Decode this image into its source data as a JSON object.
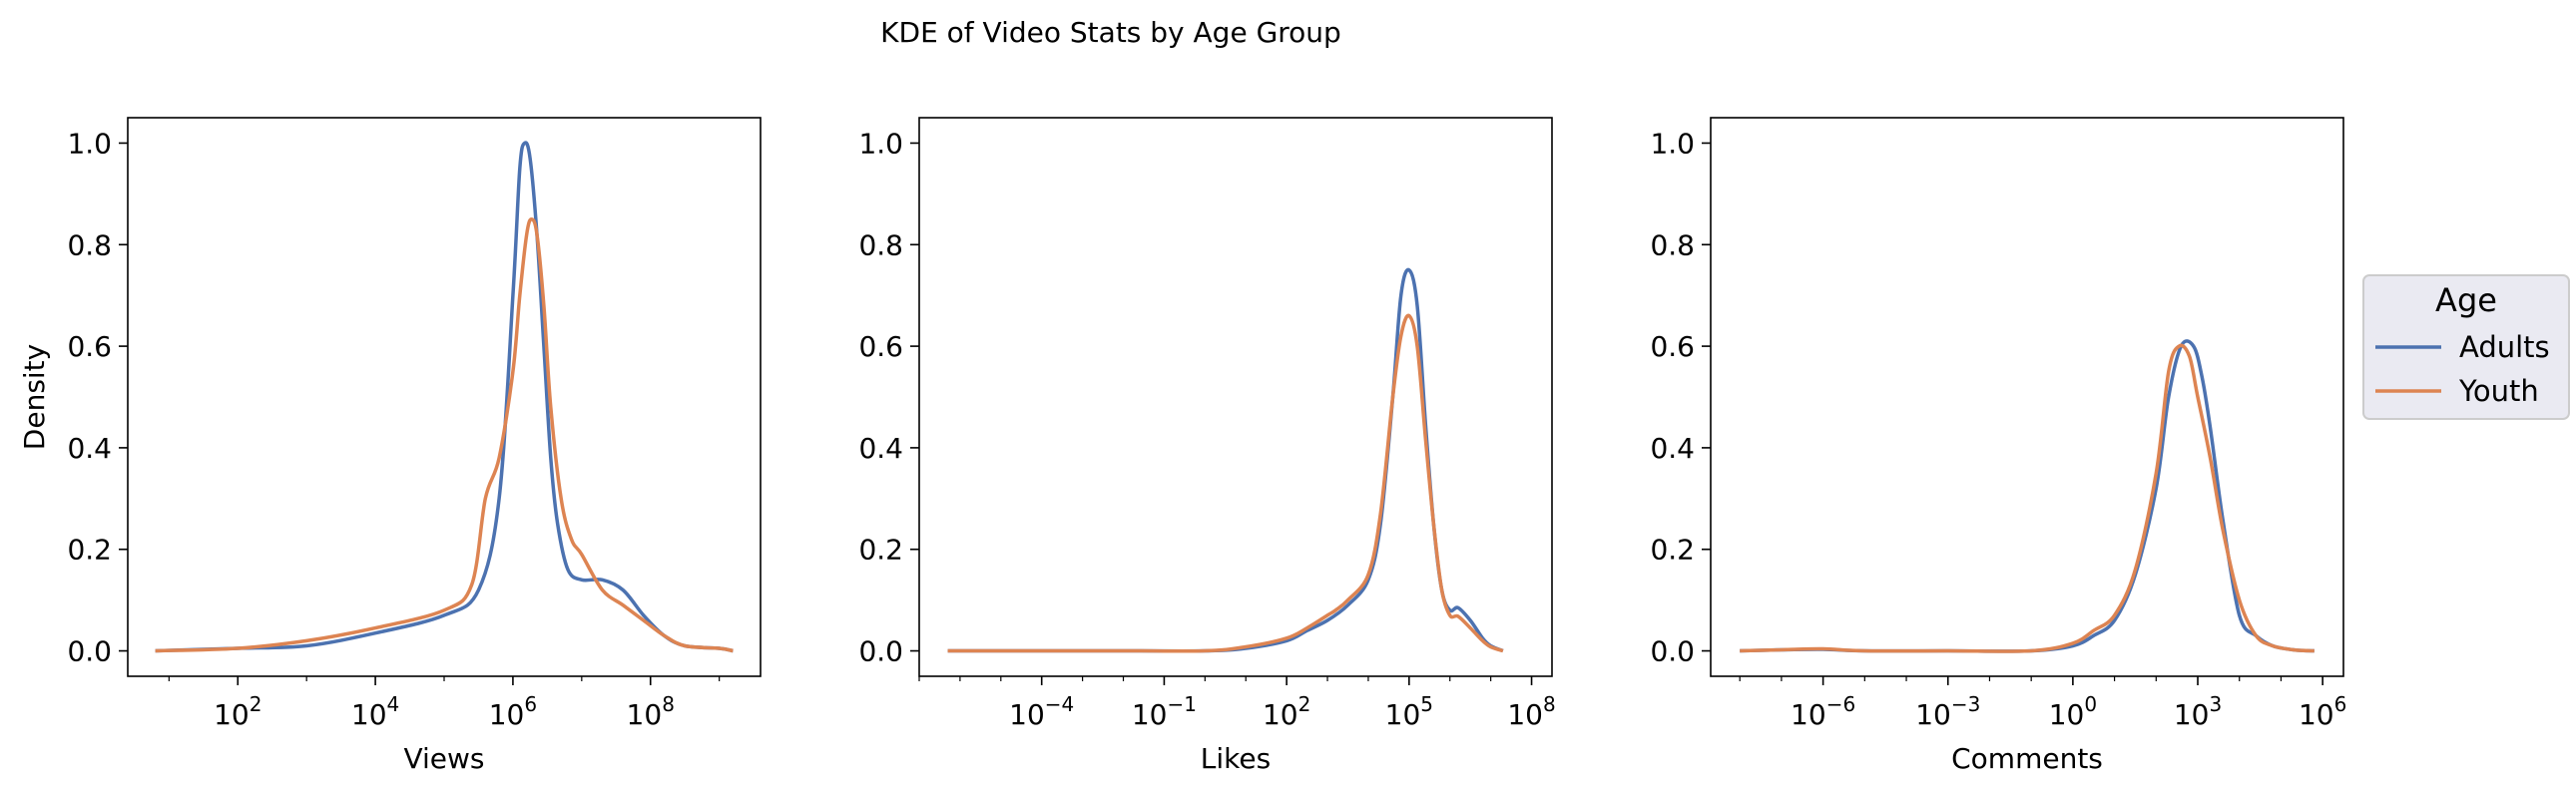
{
  "title": "KDE of Video Stats by Age Group",
  "legend": {
    "title": "Age",
    "placement": "right-outside",
    "entries": [
      {
        "name": "Adults",
        "color": "#4c72b0"
      },
      {
        "name": "Youth",
        "color": "#dd8452"
      }
    ]
  },
  "chart_data": [
    {
      "type": "line",
      "xlabel": "Views",
      "ylabel": "Density",
      "xscale": "log",
      "xlim_log10": [
        0.4,
        9.6
      ],
      "ylim": [
        -0.05,
        1.05
      ],
      "xticks": [
        {
          "exp": 2,
          "base": "10",
          "power": "2"
        },
        {
          "exp": 4,
          "base": "10",
          "power": "4"
        },
        {
          "exp": 6,
          "base": "10",
          "power": "6"
        },
        {
          "exp": 8,
          "base": "10",
          "power": "8"
        }
      ],
      "yticks": [
        {
          "value": 0.0,
          "label": "0.0"
        },
        {
          "value": 0.2,
          "label": "0.2"
        },
        {
          "value": 0.4,
          "label": "0.4"
        },
        {
          "value": 0.6,
          "label": "0.6"
        },
        {
          "value": 0.8,
          "label": "0.8"
        },
        {
          "value": 1.0,
          "label": "1.0"
        }
      ],
      "series": [
        {
          "name": "Adults",
          "color": "#4c72b0",
          "log10_x": [
            0.8,
            2.0,
            3.0,
            4.0,
            5.0,
            5.5,
            5.8,
            6.0,
            6.1,
            6.17,
            6.25,
            6.35,
            6.45,
            6.55,
            6.65,
            6.8,
            7.0,
            7.3,
            7.6,
            7.9,
            8.2,
            8.5,
            9.0,
            9.2
          ],
          "y": [
            0.0,
            0.005,
            0.01,
            0.035,
            0.07,
            0.12,
            0.3,
            0.7,
            0.95,
            1.0,
            0.97,
            0.82,
            0.6,
            0.38,
            0.25,
            0.16,
            0.14,
            0.14,
            0.12,
            0.07,
            0.03,
            0.01,
            0.005,
            0.0
          ]
        },
        {
          "name": "Youth",
          "color": "#dd8452",
          "log10_x": [
            0.8,
            2.0,
            3.0,
            4.0,
            5.0,
            5.4,
            5.6,
            5.8,
            6.0,
            6.1,
            6.2,
            6.27,
            6.35,
            6.45,
            6.55,
            6.7,
            6.85,
            7.0,
            7.3,
            7.6,
            7.9,
            8.2,
            8.5,
            9.0,
            9.2
          ],
          "y": [
            0.0,
            0.005,
            0.02,
            0.045,
            0.08,
            0.13,
            0.3,
            0.38,
            0.55,
            0.7,
            0.82,
            0.85,
            0.82,
            0.68,
            0.48,
            0.3,
            0.22,
            0.19,
            0.12,
            0.09,
            0.06,
            0.03,
            0.01,
            0.005,
            0.0
          ]
        }
      ]
    },
    {
      "type": "line",
      "xlabel": "Likes",
      "ylabel": "",
      "xscale": "log",
      "xlim_log10": [
        -7.0,
        8.5
      ],
      "ylim": [
        -0.05,
        1.05
      ],
      "xticks": [
        {
          "exp": -4,
          "base": "10",
          "power": "−4"
        },
        {
          "exp": -1,
          "base": "10",
          "power": "−1"
        },
        {
          "exp": 2,
          "base": "10",
          "power": "2"
        },
        {
          "exp": 5,
          "base": "10",
          "power": "5"
        },
        {
          "exp": 8,
          "base": "10",
          "power": "8"
        }
      ],
      "yticks": [
        {
          "value": 0.0,
          "label": "0.0"
        },
        {
          "value": 0.2,
          "label": "0.2"
        },
        {
          "value": 0.4,
          "label": "0.4"
        },
        {
          "value": 0.6,
          "label": "0.6"
        },
        {
          "value": 0.8,
          "label": "0.8"
        },
        {
          "value": 1.0,
          "label": "1.0"
        }
      ],
      "series": [
        {
          "name": "Adults",
          "color": "#4c72b0",
          "log10_x": [
            -6.3,
            -2.0,
            0.0,
            1.0,
            2.0,
            2.5,
            3.0,
            3.5,
            4.0,
            4.3,
            4.6,
            4.8,
            5.0,
            5.2,
            5.4,
            5.6,
            5.8,
            6.0,
            6.2,
            6.5,
            6.8,
            7.0,
            7.3
          ],
          "y": [
            0.0,
            0.0,
            0.0,
            0.005,
            0.02,
            0.04,
            0.06,
            0.09,
            0.14,
            0.25,
            0.5,
            0.7,
            0.75,
            0.68,
            0.45,
            0.25,
            0.12,
            0.08,
            0.085,
            0.06,
            0.025,
            0.01,
            0.0
          ]
        },
        {
          "name": "Youth",
          "color": "#dd8452",
          "log10_x": [
            -6.3,
            -2.0,
            0.0,
            1.0,
            2.0,
            2.5,
            3.0,
            3.2,
            3.5,
            4.0,
            4.3,
            4.6,
            4.8,
            5.0,
            5.2,
            5.4,
            5.6,
            5.8,
            6.0,
            6.2,
            6.5,
            6.8,
            7.0,
            7.3
          ],
          "y": [
            0.0,
            0.0,
            0.0,
            0.008,
            0.025,
            0.045,
            0.07,
            0.08,
            0.1,
            0.15,
            0.27,
            0.5,
            0.62,
            0.66,
            0.6,
            0.42,
            0.25,
            0.12,
            0.07,
            0.068,
            0.045,
            0.02,
            0.008,
            0.0
          ]
        }
      ]
    },
    {
      "type": "line",
      "xlabel": "Comments",
      "ylabel": "",
      "xscale": "log",
      "xlim_log10": [
        -8.7,
        6.5
      ],
      "ylim": [
        -0.05,
        1.05
      ],
      "xticks": [
        {
          "exp": -6,
          "base": "10",
          "power": "−6"
        },
        {
          "exp": -3,
          "base": "10",
          "power": "−3"
        },
        {
          "exp": 0,
          "base": "10",
          "power": "0"
        },
        {
          "exp": 3,
          "base": "10",
          "power": "3"
        },
        {
          "exp": 6,
          "base": "10",
          "power": "6"
        }
      ],
      "yticks": [
        {
          "value": 0.0,
          "label": "0.0"
        },
        {
          "value": 0.2,
          "label": "0.2"
        },
        {
          "value": 0.4,
          "label": "0.4"
        },
        {
          "value": 0.6,
          "label": "0.6"
        },
        {
          "value": 0.8,
          "label": "0.8"
        },
        {
          "value": 1.0,
          "label": "1.0"
        }
      ],
      "series": [
        {
          "name": "Adults",
          "color": "#4c72b0",
          "log10_x": [
            -8.0,
            -7.0,
            -6.0,
            -5.0,
            -3.0,
            -1.0,
            0.0,
            0.5,
            1.0,
            1.5,
            2.0,
            2.3,
            2.6,
            2.9,
            3.1,
            3.3,
            3.6,
            4.0,
            4.4,
            4.8,
            5.3,
            5.8
          ],
          "y": [
            0.0,
            0.002,
            0.003,
            0.0,
            0.0,
            0.0,
            0.01,
            0.03,
            0.06,
            0.15,
            0.32,
            0.5,
            0.6,
            0.6,
            0.54,
            0.44,
            0.26,
            0.07,
            0.03,
            0.01,
            0.002,
            0.0
          ]
        },
        {
          "name": "Youth",
          "color": "#dd8452",
          "log10_x": [
            -8.0,
            -7.0,
            -6.0,
            -5.0,
            -3.0,
            -1.0,
            0.0,
            0.5,
            1.0,
            1.5,
            2.0,
            2.3,
            2.55,
            2.8,
            3.0,
            3.3,
            3.6,
            4.0,
            4.4,
            4.8,
            5.3,
            5.8
          ],
          "y": [
            0.0,
            0.002,
            0.004,
            0.0,
            0.0,
            0.0,
            0.015,
            0.04,
            0.07,
            0.16,
            0.35,
            0.55,
            0.6,
            0.58,
            0.5,
            0.38,
            0.24,
            0.1,
            0.03,
            0.01,
            0.002,
            0.0
          ]
        }
      ]
    }
  ]
}
